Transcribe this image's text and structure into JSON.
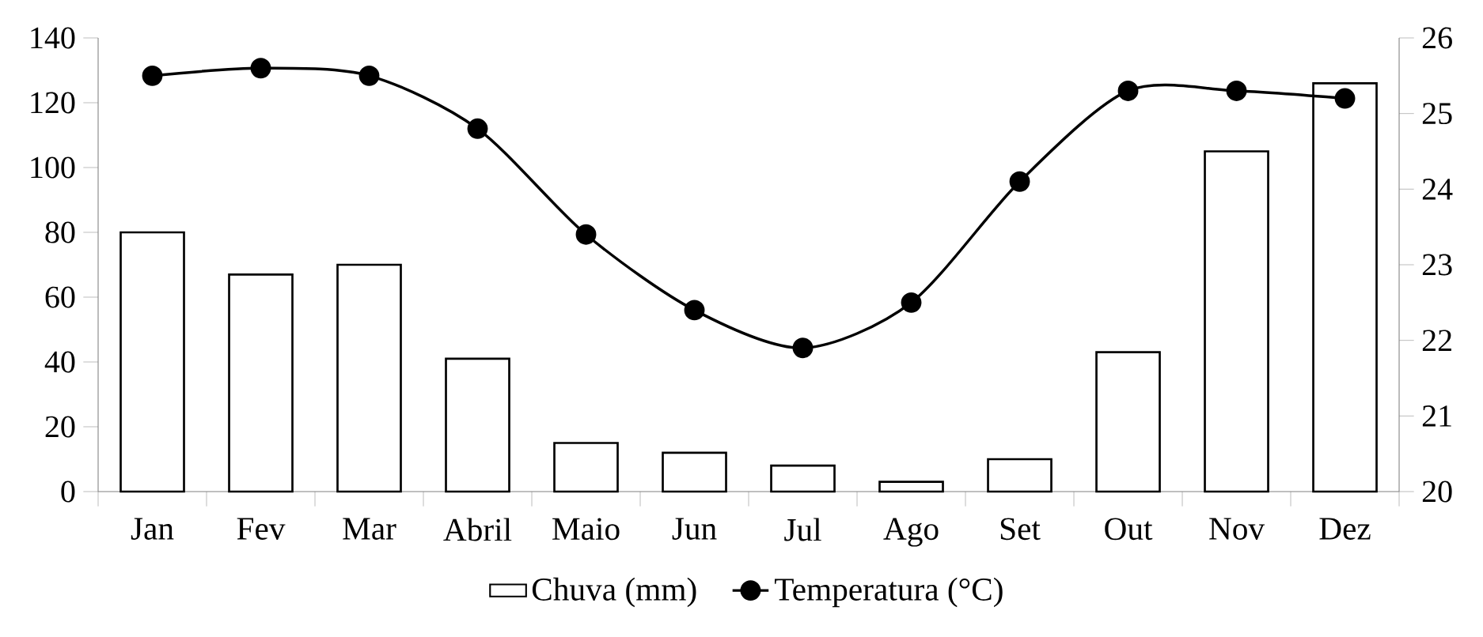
{
  "chart_data": {
    "type": "bar",
    "categories": [
      "Jan",
      "Fev",
      "Mar",
      "Abril",
      "Maio",
      "Jun",
      "Jul",
      "Ago",
      "Set",
      "Out",
      "Nov",
      "Dez"
    ],
    "series": [
      {
        "name": "Chuva (mm)",
        "color": "#ffffff",
        "values": [
          80,
          67,
          70,
          41,
          15,
          12,
          8,
          3,
          10,
          43,
          105,
          126
        ]
      },
      {
        "name": "Temperatura (°C)",
        "type": "line",
        "axis": "y2",
        "color": "#000000",
        "values": [
          25.5,
          25.6,
          25.5,
          24.8,
          23.4,
          22.4,
          21.9,
          22.5,
          24.1,
          25.3,
          25.3,
          25.2
        ]
      }
    ],
    "ylim": [
      0,
      140
    ],
    "yticks": [
      0,
      20,
      40,
      60,
      80,
      100,
      120,
      140
    ],
    "y2lim": [
      20,
      26
    ],
    "y2ticks": [
      20,
      21,
      22,
      23,
      24,
      25,
      26
    ],
    "marker": "circle",
    "legend": "bottom",
    "grid": false
  }
}
